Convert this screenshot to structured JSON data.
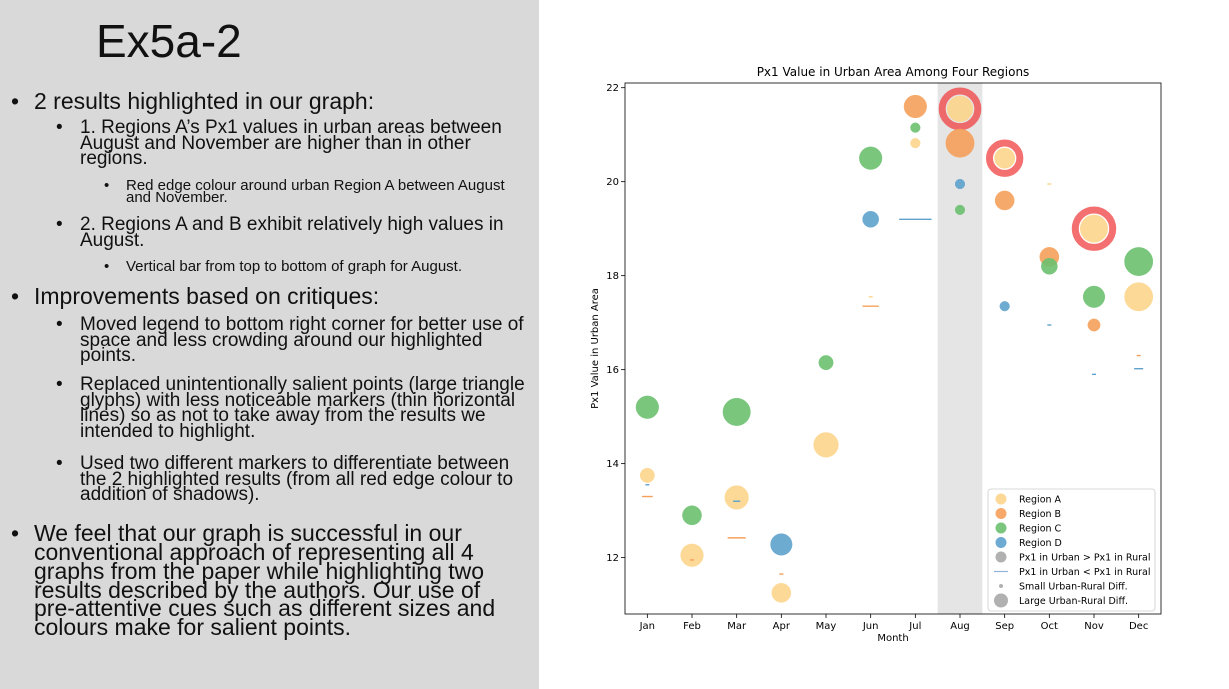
{
  "slide": {
    "title": "Ex5a-2",
    "bullets": [
      {
        "level": 1,
        "text": "2 results highlighted in our graph:"
      },
      {
        "level": 2,
        "text": "1. Regions A’s Px1 values in urban areas between August and November are higher than in other regions."
      },
      {
        "level": 3,
        "text": "Red edge colour around urban Region A between August and November."
      },
      {
        "level": 2,
        "text": "2. Regions A and B exhibit relatively high values in August."
      },
      {
        "level": 3,
        "text": "Vertical bar from top to bottom of graph for August."
      },
      {
        "level": 1,
        "text": "Improvements based on critiques:"
      },
      {
        "level": 2,
        "text": "Moved legend to bottom right corner for better use of space and less crowding around our highlighted points."
      },
      {
        "level": 2,
        "text": "Replaced unintentionally salient points (large triangle glyphs) with less noticeable markers (thin horizontal lines) so as not to take away from the results we intended to highlight."
      },
      {
        "level": 2,
        "text": "Used two different markers to differentiate between the 2 highlighted results (from all red edge colour to addition of shadows)."
      },
      {
        "level": 1,
        "text": "We feel that our graph is successful in our conventional approach of representing all 4 graphs from the paper while highlighting two results described by the authors. Our use of pre-attentive cues such as different sizes and colours make for salient points."
      }
    ]
  },
  "chart_data": {
    "type": "scatter",
    "title": "Px1 Value in Urban Area Among Four Regions",
    "xlabel": "Month",
    "ylabel": "Px1 Value in Urban Area",
    "categories": [
      "Jan",
      "Feb",
      "Mar",
      "Apr",
      "May",
      "Jun",
      "Jul",
      "Aug",
      "Sep",
      "Oct",
      "Nov",
      "Dec"
    ],
    "ylim": [
      10.8,
      22.1
    ],
    "yticks": [
      12,
      14,
      16,
      18,
      20,
      22
    ],
    "highlight_band": "Aug",
    "colors": {
      "Region A": "#fdd58c",
      "Region B": "#f5a05a",
      "Region C": "#6cc070",
      "Region D": "#5ea2cd",
      "highlight_edge": "#f04040",
      "band": "#e5e5e5"
    },
    "series": [
      {
        "name": "Region A",
        "points": [
          {
            "x": "Jan",
            "y": 13.75,
            "marker": "circle",
            "diff": 0.15
          },
          {
            "x": "Feb",
            "y": 12.05,
            "marker": "circle",
            "diff": 0.45
          },
          {
            "x": "Mar",
            "y": 13.28,
            "marker": "circle",
            "diff": 0.5
          },
          {
            "x": "Apr",
            "y": 11.25,
            "marker": "circle",
            "diff": 0.3
          },
          {
            "x": "May",
            "y": 14.4,
            "marker": "circle",
            "diff": 0.55
          },
          {
            "x": "Jun",
            "y": 17.55,
            "marker": "line",
            "diff": 0.05
          },
          {
            "x": "Jul",
            "y": 20.82,
            "marker": "circle",
            "diff": 0.05
          },
          {
            "x": "Aug",
            "y": 21.55,
            "marker": "circle",
            "diff": 0.6,
            "edge": "highlight_edge"
          },
          {
            "x": "Sep",
            "y": 20.5,
            "marker": "circle",
            "diff": 0.35,
            "edge": "highlight_edge"
          },
          {
            "x": "Oct",
            "y": 19.95,
            "marker": "line",
            "diff": 0.05
          },
          {
            "x": "Nov",
            "y": 19.0,
            "marker": "circle",
            "diff": 0.7,
            "edge": "highlight_edge"
          },
          {
            "x": "Dec",
            "y": 17.55,
            "marker": "circle",
            "diff": 0.75
          }
        ]
      },
      {
        "name": "Region B",
        "points": [
          {
            "x": "Jan",
            "y": 13.3,
            "marker": "line",
            "diff": 0.3
          },
          {
            "x": "Feb",
            "y": 11.95,
            "marker": "line",
            "diff": 0.1
          },
          {
            "x": "Mar",
            "y": 12.42,
            "marker": "line",
            "diff": 0.5
          },
          {
            "x": "Apr",
            "y": 11.65,
            "marker": "line",
            "diff": 0.05
          },
          {
            "x": "Jun",
            "y": 17.35,
            "marker": "line",
            "diff": 0.45
          },
          {
            "x": "Jul",
            "y": 21.6,
            "marker": "circle",
            "diff": 0.45
          },
          {
            "x": "Aug",
            "y": 20.82,
            "marker": "circle",
            "diff": 0.75
          },
          {
            "x": "Sep",
            "y": 19.6,
            "marker": "circle",
            "diff": 0.3
          },
          {
            "x": "Oct",
            "y": 18.4,
            "marker": "circle",
            "diff": 0.3
          },
          {
            "x": "Nov",
            "y": 16.95,
            "marker": "circle",
            "diff": 0.1
          },
          {
            "x": "Dec",
            "y": 16.3,
            "marker": "line",
            "diff": 0.1
          }
        ]
      },
      {
        "name": "Region C",
        "points": [
          {
            "x": "Jan",
            "y": 15.2,
            "marker": "circle",
            "diff": 0.45
          },
          {
            "x": "Feb",
            "y": 12.9,
            "marker": "circle",
            "diff": 0.3
          },
          {
            "x": "Mar",
            "y": 15.1,
            "marker": "circle",
            "diff": 0.7
          },
          {
            "x": "May",
            "y": 16.15,
            "marker": "circle",
            "diff": 0.15
          },
          {
            "x": "Jun",
            "y": 20.5,
            "marker": "circle",
            "diff": 0.45
          },
          {
            "x": "Jul",
            "y": 21.15,
            "marker": "circle",
            "diff": 0.05
          },
          {
            "x": "Aug",
            "y": 19.4,
            "marker": "circle",
            "diff": 0.05
          },
          {
            "x": "Oct",
            "y": 18.2,
            "marker": "circle",
            "diff": 0.2
          },
          {
            "x": "Nov",
            "y": 17.55,
            "marker": "circle",
            "diff": 0.4
          },
          {
            "x": "Dec",
            "y": 18.3,
            "marker": "circle",
            "diff": 0.75
          }
        ]
      },
      {
        "name": "Region D",
        "points": [
          {
            "x": "Jan",
            "y": 13.55,
            "marker": "line",
            "diff": 0.05
          },
          {
            "x": "Mar",
            "y": 13.2,
            "marker": "line",
            "diff": 0.2
          },
          {
            "x": "Apr",
            "y": 12.28,
            "marker": "circle",
            "diff": 0.4
          },
          {
            "x": "Jun",
            "y": 19.2,
            "marker": "circle",
            "diff": 0.2
          },
          {
            "x": "Jul",
            "y": 19.2,
            "marker": "line",
            "diff": 0.9
          },
          {
            "x": "Aug",
            "y": 19.95,
            "marker": "circle",
            "diff": 0.05
          },
          {
            "x": "Sep",
            "y": 17.35,
            "marker": "circle",
            "diff": 0.05
          },
          {
            "x": "Oct",
            "y": 16.95,
            "marker": "line",
            "diff": 0.05
          },
          {
            "x": "Nov",
            "y": 15.9,
            "marker": "line",
            "diff": 0.1
          },
          {
            "x": "Dec",
            "y": 16.02,
            "marker": "line",
            "diff": 0.25
          }
        ]
      }
    ],
    "legend": {
      "placement": "bottom-right",
      "entries": [
        {
          "label": "Region A",
          "swatch": "circle",
          "color": "#fdd58c"
        },
        {
          "label": "Region B",
          "swatch": "circle",
          "color": "#f5a05a"
        },
        {
          "label": "Region C",
          "swatch": "circle",
          "color": "#6cc070"
        },
        {
          "label": "Region D",
          "swatch": "circle",
          "color": "#5ea2cd"
        },
        {
          "label": "Px1 in Urban > Px1 in Rural",
          "swatch": "circle",
          "color": "#a8a8a8"
        },
        {
          "label": "Px1 in Urban < Px1 in Rural",
          "swatch": "line",
          "color": "#8fb4d8"
        },
        {
          "label": "Small Urban-Rural Diff.",
          "swatch": "small-circle",
          "color": "#a8a8a8"
        },
        {
          "label": "Large Urban-Rural Diff.",
          "swatch": "large-circle",
          "color": "#a8a8a8"
        }
      ]
    }
  }
}
